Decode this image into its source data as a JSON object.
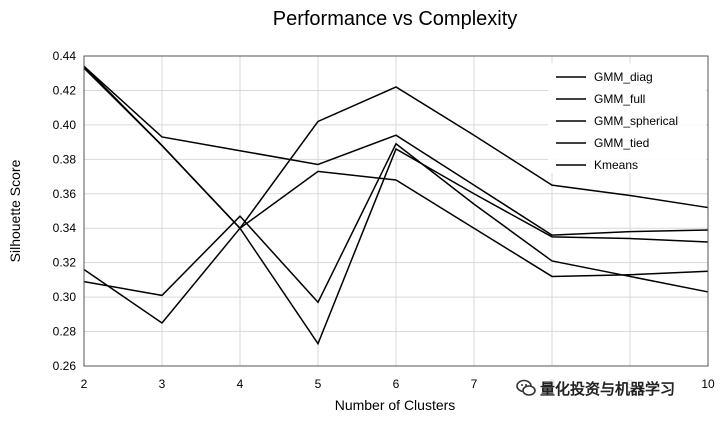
{
  "chart_data": {
    "type": "line",
    "title": "Performance vs Complexity",
    "xlabel": "Number of Clusters",
    "ylabel": "Silhouette Score",
    "x": [
      2,
      3,
      4,
      5,
      6,
      7,
      8,
      9,
      10
    ],
    "xlim": [
      2,
      10
    ],
    "ylim": [
      0.26,
      0.44
    ],
    "x_ticks": [
      "2",
      "3",
      "4",
      "5",
      "6",
      "7",
      "8",
      "9",
      "10"
    ],
    "y_ticks": [
      "0.26",
      "0.28",
      "0.30",
      "0.32",
      "0.34",
      "0.36",
      "0.38",
      "0.40",
      "0.42",
      "0.44"
    ],
    "grid": true,
    "legend_position": "top-right",
    "series": [
      {
        "name": "GMM_diag",
        "values": [
          0.316,
          0.285,
          0.34,
          0.402,
          0.422,
          0.394,
          0.365,
          0.359,
          0.352
        ]
      },
      {
        "name": "GMM_full",
        "values": [
          0.434,
          0.393,
          0.385,
          0.377,
          0.394,
          0.365,
          0.336,
          0.338,
          0.339
        ]
      },
      {
        "name": "GMM_spherical",
        "values": [
          0.309,
          0.301,
          0.347,
          0.297,
          0.389,
          0.354,
          0.321,
          0.312,
          0.303
        ]
      },
      {
        "name": "GMM_tied",
        "values": [
          0.433,
          0.388,
          0.34,
          0.373,
          0.368,
          0.34,
          0.312,
          0.313,
          0.315
        ]
      },
      {
        "name": "Kmeans",
        "values": [
          0.434,
          0.388,
          0.34,
          0.273,
          0.386,
          0.36,
          0.335,
          0.334,
          0.332
        ]
      }
    ],
    "colors": {
      "line": "#000000",
      "grid": "#d9d9d9",
      "axis": "#555555"
    }
  },
  "watermark": {
    "text": "量化投资与机器学习",
    "icon": "wechat-icon"
  }
}
